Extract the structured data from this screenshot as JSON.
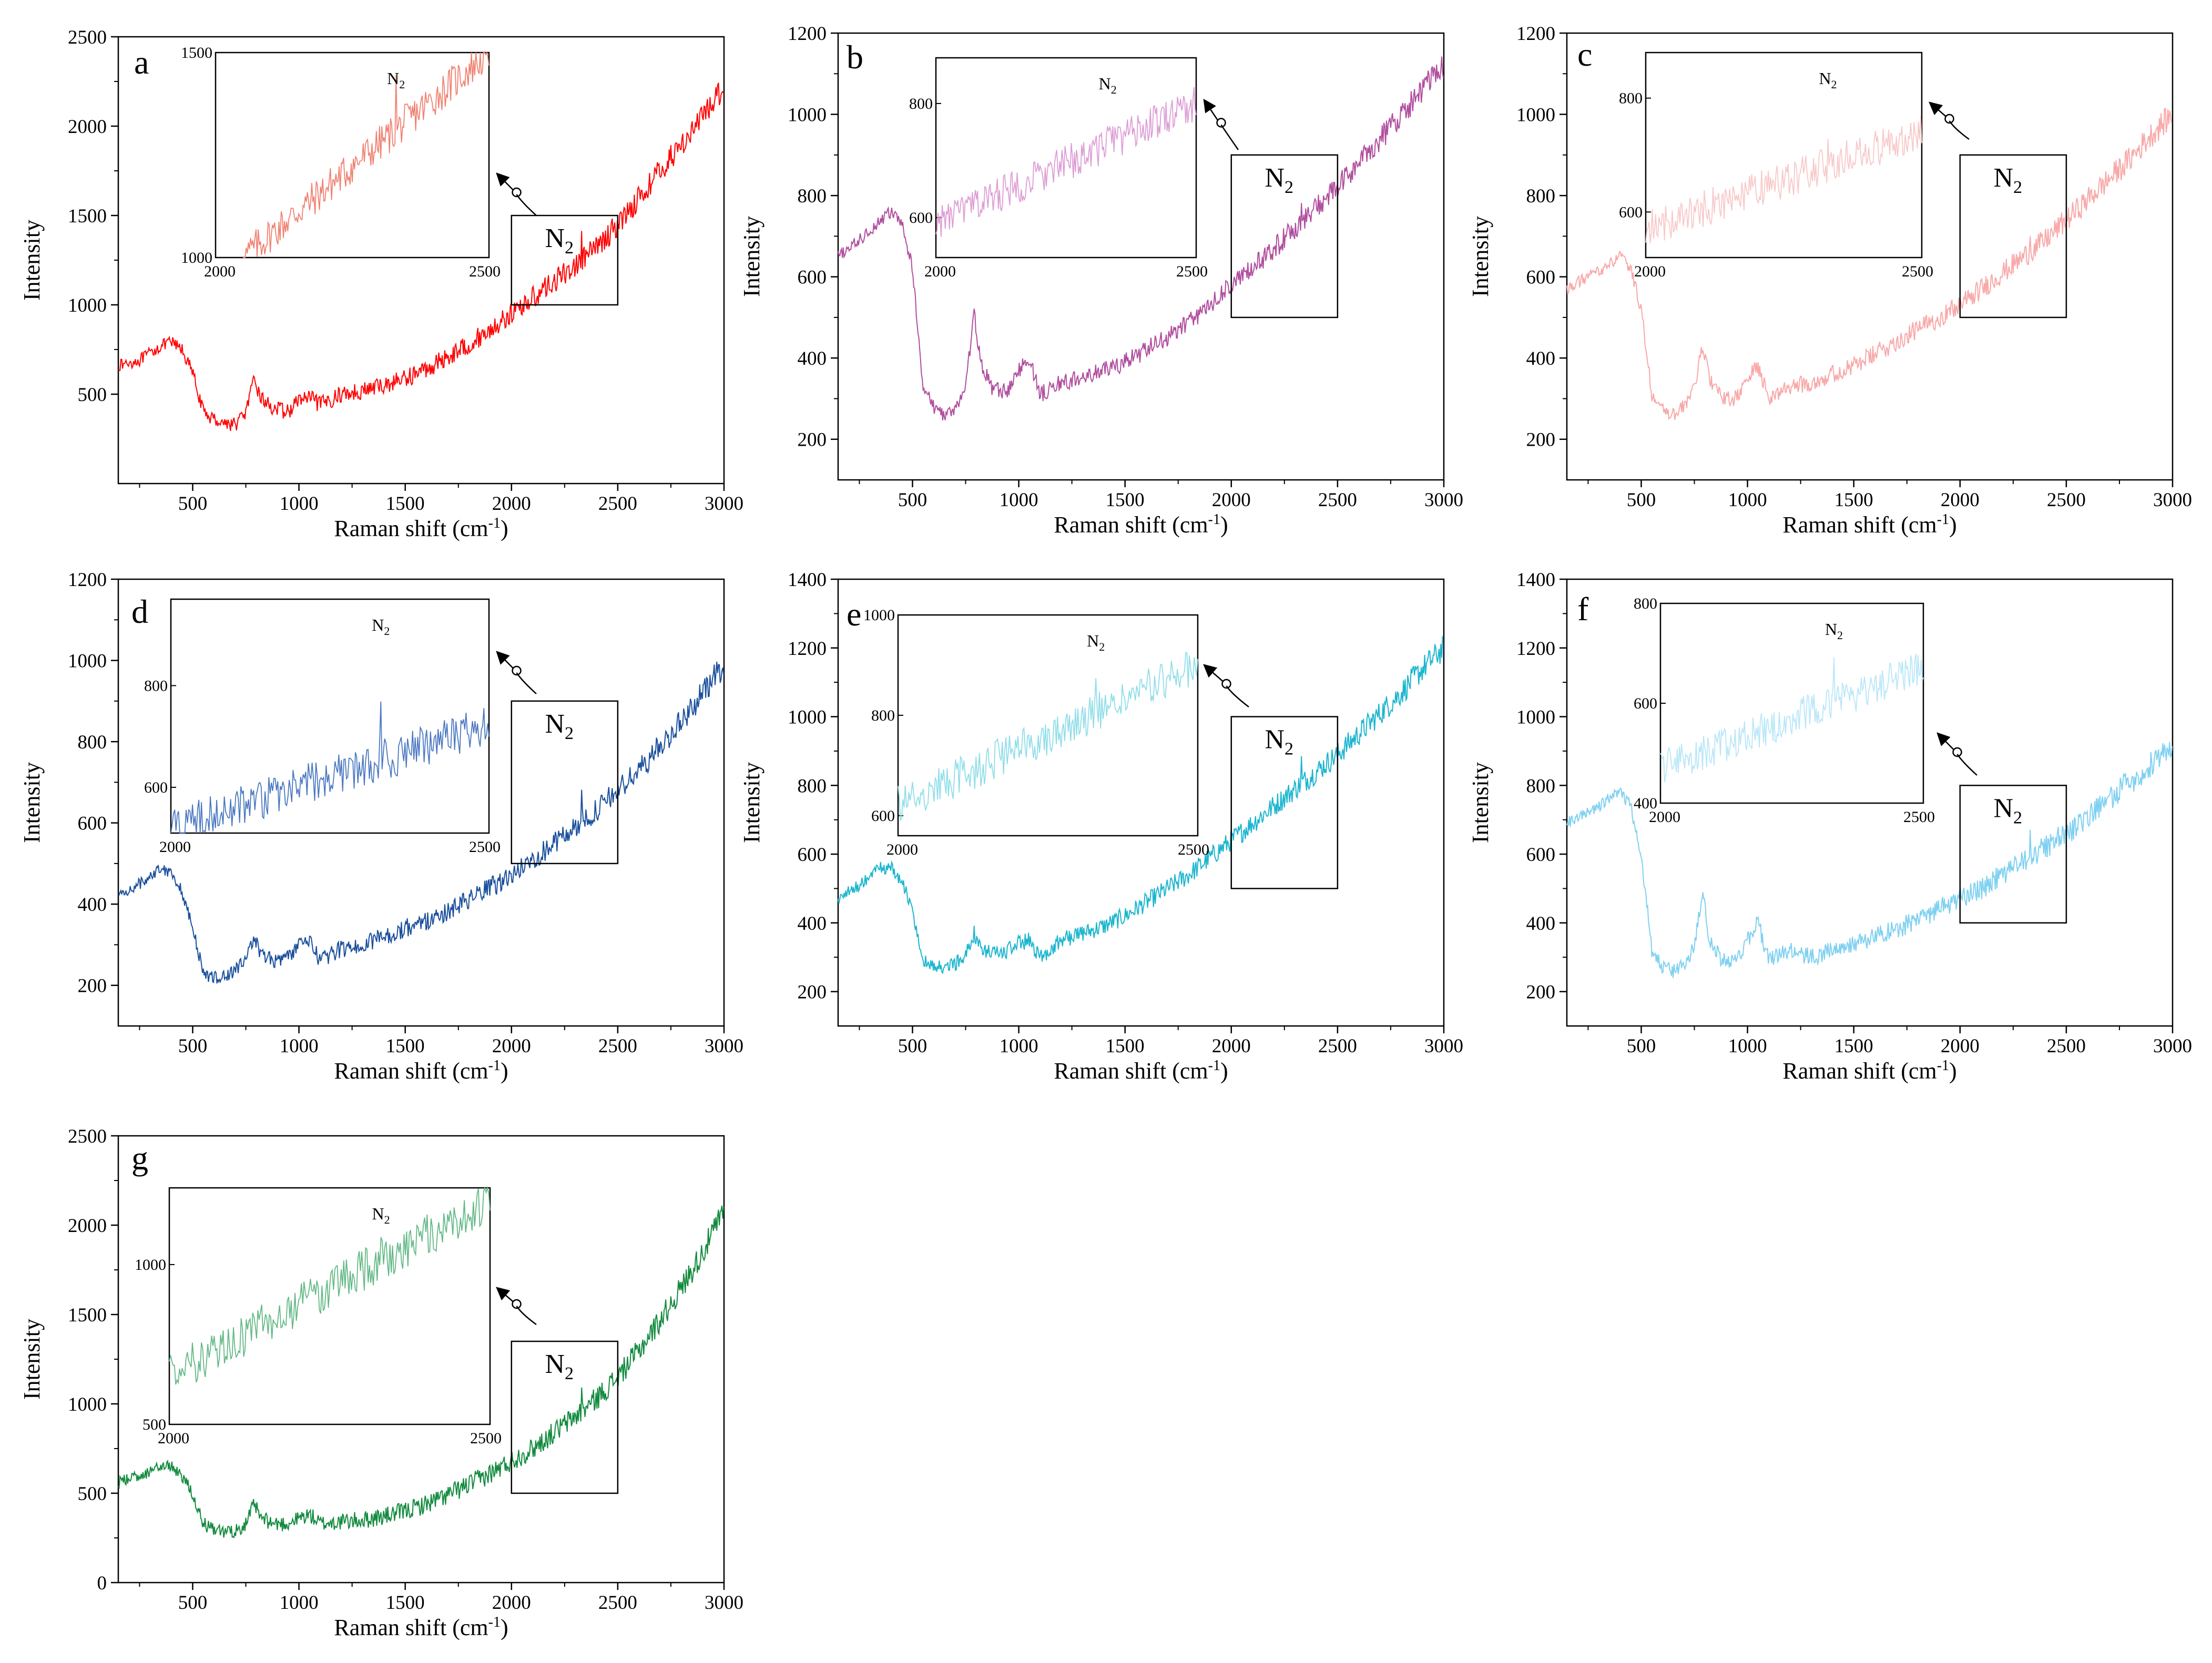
{
  "figure": {
    "common": {
      "xlabel_main": "Raman shift (cm",
      "xlabel_sup": "-1",
      "xlabel_end": ")",
      "ylabel": "Intensity",
      "peak_label_main": "N",
      "peak_label_sub": "2"
    }
  },
  "chart_data": [
    {
      "type": "line",
      "panel": "a",
      "color": "#ff0000",
      "xlim": [
        150,
        3000
      ],
      "ylim": [
        0,
        2500
      ],
      "xticks": [
        500,
        1000,
        1500,
        2000,
        2500,
        3000
      ],
      "yticks": [
        500,
        1000,
        1500,
        2000,
        2500
      ],
      "series": [
        {
          "name": "a",
          "x": [
            150,
            250,
            350,
            400,
            450,
            500,
            550,
            600,
            650,
            700,
            750,
            790,
            820,
            880,
            950,
            1000,
            1050,
            1100,
            1200,
            1300,
            1400,
            1500,
            1600,
            1700,
            1800,
            1900,
            2000,
            2100,
            2200,
            2300,
            2400,
            2500,
            2600,
            2700,
            2800,
            2900,
            3000
          ],
          "y": [
            660,
            690,
            770,
            790,
            750,
            620,
            400,
            360,
            340,
            330,
            400,
            580,
            480,
            420,
            400,
            470,
            480,
            440,
            500,
            520,
            550,
            590,
            640,
            710,
            780,
            860,
            950,
            1040,
            1130,
            1220,
            1320,
            1450,
            1600,
            1750,
            1900,
            2050,
            2230
          ]
        }
      ],
      "box": {
        "x": [
          2000,
          2500
        ],
        "y": [
          1000,
          1500
        ]
      },
      "inset": {
        "xlim": [
          2000,
          2500
        ],
        "ylim": [
          1000,
          1500
        ],
        "xticks": [
          2000,
          2500
        ],
        "yticks": [
          1000,
          1500
        ],
        "color": "#f08070",
        "x_start": 2050,
        "y_start": 1000,
        "y_end": 1500,
        "peak_x": 2330,
        "peak_height": 110
      }
    },
    {
      "type": "line",
      "panel": "b",
      "color": "#b04d9e",
      "xlim": [
        150,
        3000
      ],
      "ylim": [
        100,
        1200
      ],
      "xticks": [
        500,
        1000,
        1500,
        2000,
        2500,
        3000
      ],
      "yticks": [
        200,
        400,
        600,
        800,
        1000,
        1200
      ],
      "series": [
        {
          "name": "b",
          "x": [
            150,
            250,
            350,
            400,
            450,
            500,
            550,
            600,
            650,
            700,
            750,
            790,
            820,
            880,
            950,
            1000,
            1050,
            1100,
            1200,
            1300,
            1400,
            1500,
            1600,
            1700,
            1800,
            1900,
            2000,
            2100,
            2200,
            2300,
            2400,
            2500,
            2600,
            2700,
            2800,
            2900,
            3000
          ],
          "y": [
            650,
            690,
            740,
            760,
            730,
            620,
            330,
            280,
            260,
            270,
            330,
            510,
            390,
            320,
            320,
            370,
            400,
            310,
            340,
            350,
            370,
            390,
            420,
            450,
            490,
            530,
            580,
            620,
            670,
            720,
            770,
            820,
            880,
            940,
            1000,
            1060,
            1120
          ]
        }
      ],
      "box": {
        "x": [
          2000,
          2500
        ],
        "y": [
          500,
          900
        ]
      },
      "inset": {
        "xlim": [
          2000,
          2500
        ],
        "ylim": [
          530,
          880
        ],
        "xticks": [
          2000,
          2500
        ],
        "yticks": [
          600,
          800
        ],
        "color": "#dd9cd5",
        "x_start": 2000,
        "y_start": 590,
        "y_end": 800,
        "peak_x": 2330,
        "peak_height": 55
      }
    },
    {
      "type": "line",
      "panel": "c",
      "color": "#f8a8a8",
      "xlim": [
        150,
        3000
      ],
      "ylim": [
        100,
        1200
      ],
      "xticks": [
        500,
        1000,
        1500,
        2000,
        2500,
        3000
      ],
      "yticks": [
        200,
        400,
        600,
        800,
        1000,
        1200
      ],
      "series": [
        {
          "name": "c",
          "x": [
            150,
            250,
            350,
            400,
            450,
            500,
            550,
            600,
            650,
            700,
            750,
            790,
            820,
            880,
            950,
            1000,
            1050,
            1100,
            1200,
            1300,
            1400,
            1500,
            1600,
            1700,
            1800,
            1900,
            2000,
            2100,
            2200,
            2300,
            2400,
            2500,
            2600,
            2700,
            2800,
            2900,
            3000
          ],
          "y": [
            570,
            600,
            630,
            650,
            620,
            520,
            310,
            270,
            260,
            280,
            330,
            430,
            350,
            300,
            300,
            350,
            380,
            300,
            330,
            340,
            360,
            380,
            410,
            440,
            470,
            500,
            530,
            570,
            610,
            650,
            690,
            740,
            790,
            840,
            890,
            950,
            1000
          ]
        }
      ],
      "box": {
        "x": [
          2000,
          2500
        ],
        "y": [
          500,
          900
        ]
      },
      "inset": {
        "xlim": [
          2000,
          2500
        ],
        "ylim": [
          520,
          880
        ],
        "xticks": [
          2000,
          2500
        ],
        "yticks": [
          600,
          800
        ],
        "color": "#f8c8c8",
        "x_start": 2000,
        "y_start": 570,
        "y_end": 740,
        "peak_x": 2330,
        "peak_height": 70
      }
    },
    {
      "type": "line",
      "panel": "d",
      "color": "#1a4f9c",
      "xlim": [
        150,
        3000
      ],
      "ylim": [
        100,
        1200
      ],
      "xticks": [
        500,
        1000,
        1500,
        2000,
        2500,
        3000
      ],
      "yticks": [
        200,
        400,
        600,
        800,
        1000,
        1200
      ],
      "series": [
        {
          "name": "d",
          "x": [
            150,
            250,
            350,
            400,
            450,
            500,
            550,
            600,
            650,
            700,
            750,
            790,
            820,
            880,
            950,
            1000,
            1050,
            1100,
            1200,
            1300,
            1400,
            1500,
            1600,
            1700,
            1800,
            1900,
            2000,
            2100,
            2200,
            2300,
            2400,
            2500,
            2600,
            2700,
            2800,
            2900,
            3000
          ],
          "y": [
            420,
            450,
            490,
            480,
            430,
            340,
            230,
            220,
            220,
            240,
            260,
            320,
            280,
            260,
            270,
            300,
            310,
            260,
            290,
            300,
            320,
            340,
            360,
            380,
            410,
            440,
            470,
            510,
            550,
            590,
            630,
            680,
            730,
            790,
            850,
            920,
            990
          ]
        }
      ],
      "box": {
        "x": [
          2000,
          2500
        ],
        "y": [
          500,
          900
        ]
      },
      "inset": {
        "xlim": [
          2000,
          2500
        ],
        "ylim": [
          510,
          970
        ],
        "xticks": [
          2000,
          2500
        ],
        "yticks": [
          600,
          800
        ],
        "color": "#4a78c0",
        "x_start": 2000,
        "y_start": 520,
        "y_end": 720,
        "peak_x": 2330,
        "peak_height": 110
      }
    },
    {
      "type": "line",
      "panel": "e",
      "color": "#1bb5cf",
      "xlim": [
        150,
        3000
      ],
      "ylim": [
        100,
        1400
      ],
      "xticks": [
        500,
        1000,
        1500,
        2000,
        2500,
        3000
      ],
      "yticks": [
        200,
        400,
        600,
        800,
        1000,
        1200,
        1400
      ],
      "series": [
        {
          "name": "e",
          "x": [
            150,
            250,
            350,
            400,
            450,
            500,
            550,
            600,
            650,
            700,
            750,
            790,
            820,
            880,
            950,
            1000,
            1050,
            1100,
            1200,
            1300,
            1400,
            1500,
            1600,
            1700,
            1800,
            1900,
            2000,
            2100,
            2200,
            2300,
            2400,
            2500,
            2600,
            2700,
            2800,
            2900,
            3000
          ],
          "y": [
            470,
            510,
            560,
            560,
            520,
            440,
            290,
            270,
            270,
            280,
            310,
            370,
            320,
            310,
            320,
            340,
            350,
            300,
            350,
            370,
            390,
            420,
            460,
            500,
            540,
            590,
            640,
            690,
            740,
            790,
            840,
            890,
            950,
            1010,
            1070,
            1140,
            1200
          ]
        }
      ],
      "box": {
        "x": [
          2000,
          2500
        ],
        "y": [
          500,
          1000
        ]
      },
      "inset": {
        "xlim": [
          2000,
          2500
        ],
        "ylim": [
          560,
          1000
        ],
        "xticks": [
          2000,
          2500
        ],
        "yticks": [
          600,
          800,
          1000
        ],
        "color": "#8fdde8",
        "x_start": 2000,
        "y_start": 620,
        "y_end": 900,
        "peak_x": 2330,
        "peak_height": 80
      }
    },
    {
      "type": "line",
      "panel": "f",
      "color": "#7fd0f0",
      "xlim": [
        150,
        3000
      ],
      "ylim": [
        100,
        1400
      ],
      "xticks": [
        500,
        1000,
        1500,
        2000,
        2500,
        3000
      ],
      "yticks": [
        200,
        400,
        600,
        800,
        1000,
        1200,
        1400
      ],
      "series": [
        {
          "name": "f",
          "x": [
            150,
            250,
            350,
            400,
            450,
            500,
            550,
            600,
            650,
            700,
            750,
            790,
            820,
            880,
            950,
            1000,
            1050,
            1100,
            1200,
            1300,
            1400,
            1500,
            1600,
            1700,
            1800,
            1900,
            2000,
            2100,
            2200,
            2300,
            2400,
            2500,
            2600,
            2700,
            2800,
            2900,
            3000
          ],
          "y": [
            690,
            720,
            760,
            780,
            740,
            600,
            320,
            270,
            260,
            280,
            330,
            500,
            350,
            290,
            290,
            350,
            400,
            290,
            320,
            300,
            320,
            340,
            360,
            380,
            410,
            440,
            470,
            500,
            540,
            580,
            620,
            660,
            710,
            760,
            810,
            860,
            920
          ]
        }
      ],
      "box": {
        "x": [
          2000,
          2500
        ],
        "y": [
          400,
          800
        ]
      },
      "inset": {
        "xlim": [
          2000,
          2500
        ],
        "ylim": [
          400,
          800
        ],
        "xticks": [
          2000,
          2500
        ],
        "yticks": [
          400,
          600,
          800
        ],
        "color": "#b8e6f8",
        "x_start": 2000,
        "y_start": 470,
        "y_end": 670,
        "peak_x": 2330,
        "peak_height": 60
      }
    },
    {
      "type": "line",
      "panel": "g",
      "color": "#128a3e",
      "xlim": [
        150,
        3000
      ],
      "ylim": [
        0,
        2500
      ],
      "xticks": [
        500,
        1000,
        1500,
        2000,
        2500,
        3000
      ],
      "yticks": [
        0,
        500,
        1000,
        1500,
        2000,
        2500
      ],
      "series": [
        {
          "name": "g",
          "x": [
            150,
            250,
            350,
            400,
            450,
            500,
            550,
            600,
            650,
            700,
            750,
            790,
            820,
            880,
            950,
            1000,
            1050,
            1100,
            1200,
            1300,
            1400,
            1500,
            1600,
            1700,
            1800,
            1900,
            2000,
            2100,
            2200,
            2300,
            2400,
            2500,
            2600,
            2700,
            2800,
            2900,
            3000
          ],
          "y": [
            560,
            600,
            650,
            650,
            600,
            500,
            330,
            290,
            280,
            290,
            330,
            440,
            360,
            330,
            330,
            360,
            380,
            330,
            340,
            350,
            370,
            400,
            440,
            490,
            550,
            610,
            680,
            750,
            840,
            930,
            1030,
            1150,
            1300,
            1470,
            1650,
            1850,
            2080
          ]
        }
      ],
      "box": {
        "x": [
          2000,
          2500
        ],
        "y": [
          500,
          1350
        ]
      },
      "inset": {
        "xlim": [
          2000,
          2500
        ],
        "ylim": [
          500,
          1240
        ],
        "xticks": [
          2000,
          2500
        ],
        "yticks": [
          500,
          1000
        ],
        "color": "#62b885",
        "x_start": 2000,
        "y_start": 650,
        "y_end": 1200,
        "peak_x": 2330,
        "peak_height": 100
      }
    }
  ]
}
